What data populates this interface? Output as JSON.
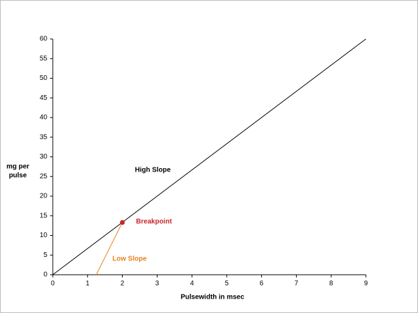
{
  "chart_data": {
    "type": "line",
    "xlabel": "Pulsewidth in msec",
    "ylabel": [
      "mg per",
      "pulse"
    ],
    "xlim": [
      0,
      9
    ],
    "ylim": [
      0,
      60
    ],
    "xticks": [
      0,
      1,
      2,
      3,
      4,
      5,
      6,
      7,
      8,
      9
    ],
    "yticks": [
      0,
      5,
      10,
      15,
      20,
      25,
      30,
      35,
      40,
      45,
      50,
      55,
      60
    ],
    "series": [
      {
        "name": "High Slope",
        "color": "#000000",
        "x": [
          0,
          9
        ],
        "values": [
          0,
          60
        ]
      },
      {
        "name": "Low Slope",
        "color": "#e8821e",
        "x": [
          1.25,
          2
        ],
        "values": [
          0,
          13.3
        ]
      }
    ],
    "points": [
      {
        "name": "Breakpoint",
        "color": "#c8262c",
        "x": 2,
        "y": 13.3
      }
    ]
  }
}
